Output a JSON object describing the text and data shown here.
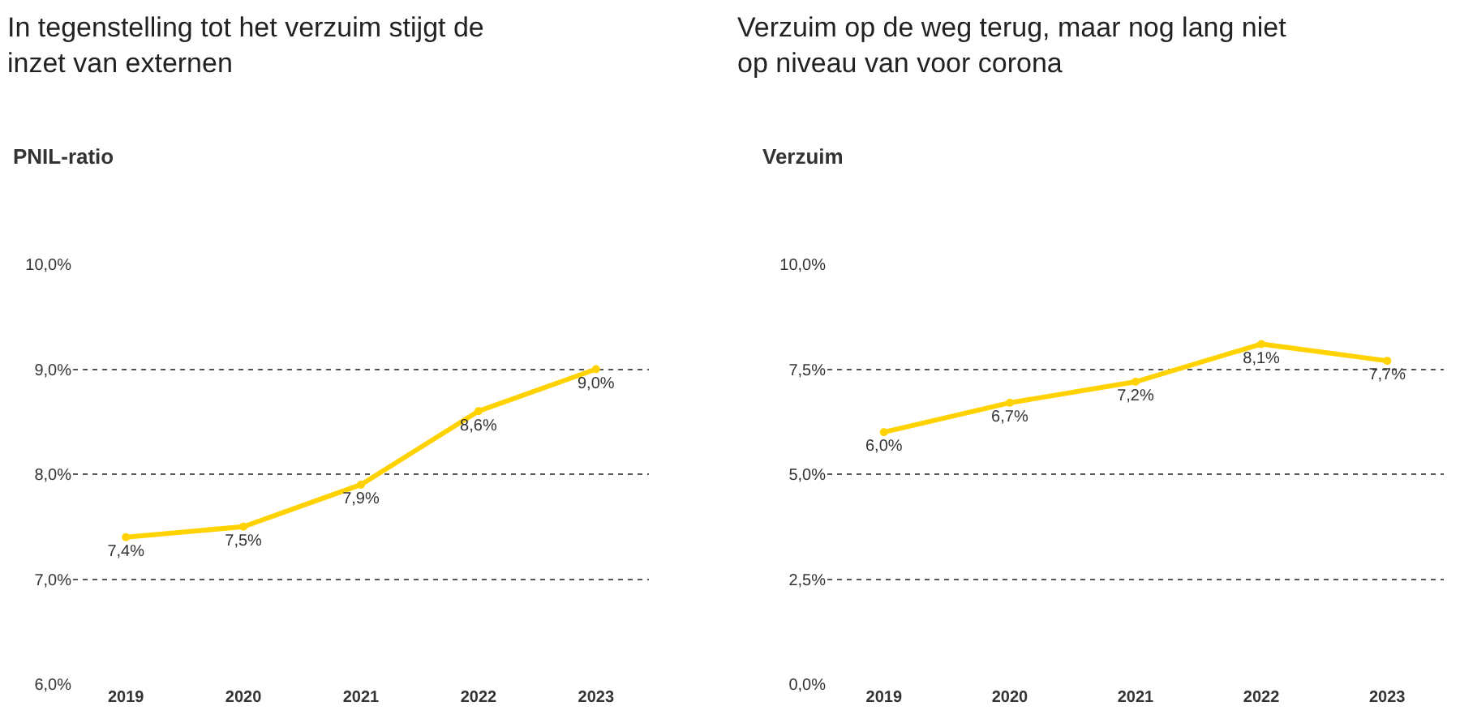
{
  "chart_data": [
    {
      "type": "line",
      "title": "In tegenstelling tot het verzuim stijgt de inzet van externen",
      "ylabel": "PNIL-ratio",
      "categories": [
        "2019",
        "2020",
        "2021",
        "2022",
        "2023"
      ],
      "series": [
        {
          "color": "#ffd200",
          "values": [
            7.4,
            7.5,
            7.9,
            8.6,
            9.0
          ],
          "value_labels": [
            "7,4%",
            "7,5%",
            "7,9%",
            "8,6%",
            "9,0%"
          ]
        }
      ],
      "ylim": [
        6,
        10
      ],
      "yticks": [
        {
          "value": 6,
          "label": "6,0%"
        },
        {
          "value": 7,
          "label": "7,0%"
        },
        {
          "value": 8,
          "label": "8,0%"
        },
        {
          "value": 9,
          "label": "9,0%"
        },
        {
          "value": 10,
          "label": "10,0%"
        }
      ],
      "grid": "y",
      "marker": "circle",
      "line_style": "solid"
    },
    {
      "type": "line",
      "title": "Verzuim op de weg terug, maar nog lang niet op niveau van voor corona",
      "ylabel": "Verzuim",
      "categories": [
        "2019",
        "2020",
        "2021",
        "2022",
        "2023"
      ],
      "series": [
        {
          "color": "#ffd200",
          "values": [
            6.0,
            6.7,
            7.2,
            8.1,
            7.7
          ],
          "value_labels": [
            "6,0%",
            "6,7%",
            "7,2%",
            "8,1%",
            "7,7%"
          ]
        }
      ],
      "ylim": [
        0,
        10
      ],
      "yticks": [
        {
          "value": 0,
          "label": "0,0%"
        },
        {
          "value": 2.5,
          "label": "2,5%"
        },
        {
          "value": 5,
          "label": "5,0%"
        },
        {
          "value": 7.5,
          "label": "7,5%"
        },
        {
          "value": 10,
          "label": "10,0%"
        }
      ],
      "grid": "y",
      "marker": "circle",
      "line_style": "solid"
    }
  ]
}
